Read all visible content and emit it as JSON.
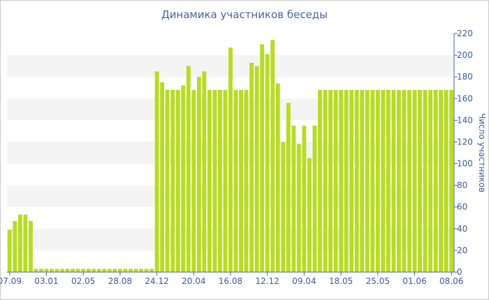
{
  "chart_data": {
    "type": "bar",
    "title": "Динамика участников беседы",
    "ylabel": "Число участников",
    "xlabel": "",
    "ylim": [
      0,
      220
    ],
    "yticks": [
      0,
      20,
      40,
      60,
      80,
      100,
      120,
      140,
      160,
      180,
      200,
      220
    ],
    "y_axis_side": "right",
    "grid": "alternating horizontal bands",
    "x_tick_labels": [
      "07.09",
      "03.01",
      "02.05",
      "28.08",
      "24.12",
      "20.04",
      "16.08",
      "12.12",
      "09.04",
      "18.05",
      "25.05",
      "01.06",
      "08.06"
    ],
    "x_tick_bar_index": [
      0,
      7,
      14,
      21,
      28,
      35,
      42,
      49,
      56,
      63,
      70,
      77,
      84
    ],
    "bar_color": "#b7dc22",
    "values": [
      39,
      47,
      53,
      53,
      47,
      3,
      3,
      3,
      3,
      3,
      3,
      3,
      3,
      3,
      3,
      3,
      3,
      3,
      3,
      3,
      3,
      3,
      3,
      3,
      3,
      3,
      3,
      3,
      185,
      175,
      168,
      168,
      168,
      172,
      190,
      168,
      180,
      185,
      168,
      168,
      168,
      168,
      207,
      168,
      168,
      168,
      193,
      190,
      210,
      201,
      214,
      174,
      120,
      156,
      135,
      118,
      135,
      105,
      135,
      168,
      168,
      168,
      168,
      168,
      168,
      168,
      168,
      168,
      168,
      168,
      168,
      168,
      168,
      168,
      168,
      168,
      168,
      168,
      168,
      168,
      168,
      168,
      168,
      168,
      168
    ]
  }
}
